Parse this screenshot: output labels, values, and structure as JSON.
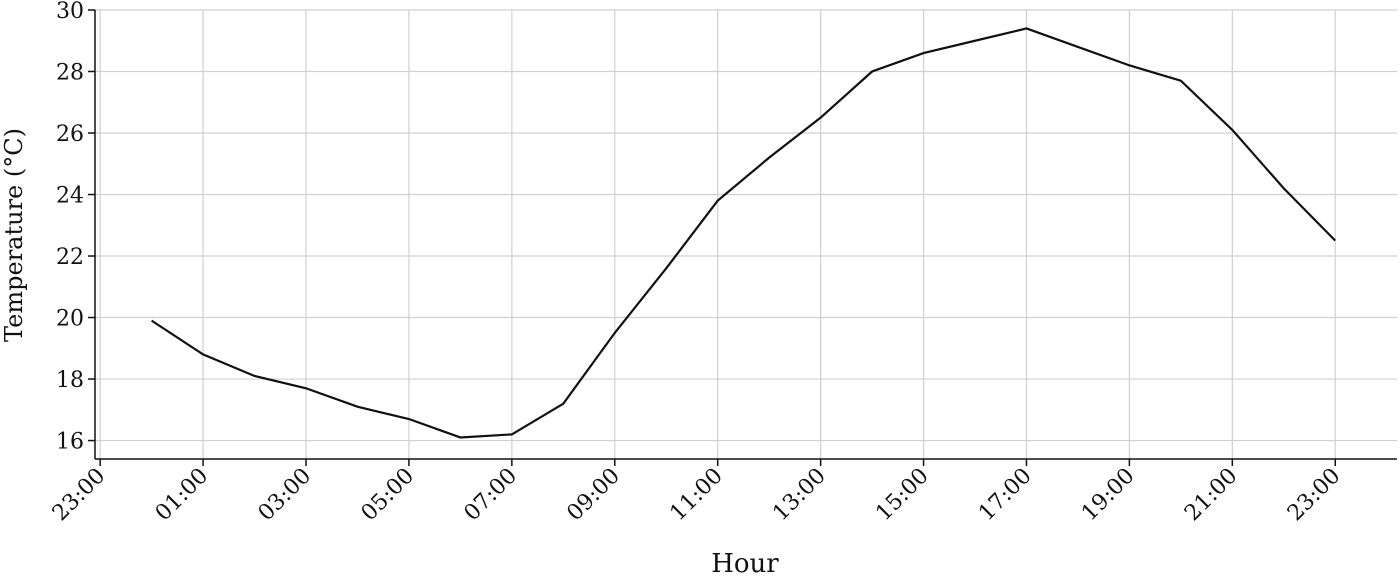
{
  "chart_data": {
    "type": "line",
    "xlabel": "Hour",
    "ylabel": "Temperature (°C)",
    "x": [
      0,
      1,
      2,
      3,
      4,
      5,
      6,
      7,
      8,
      9,
      10,
      11,
      12,
      13,
      14,
      15,
      16,
      17,
      18,
      19,
      20,
      21,
      22,
      23
    ],
    "values": [
      19.9,
      18.8,
      18.1,
      17.7,
      17.1,
      16.7,
      16.1,
      16.2,
      17.2,
      19.5,
      21.6,
      23.8,
      25.2,
      26.5,
      28.0,
      28.6,
      29.0,
      29.4,
      28.8,
      28.2,
      27.7,
      26.1,
      24.2,
      22.5
    ],
    "color": "#111111",
    "xlim": [
      -1.1,
      24.2
    ],
    "xticks": [
      {
        "value": -1,
        "label": "23:00"
      },
      {
        "value": 1,
        "label": "01:00"
      },
      {
        "value": 3,
        "label": "03:00"
      },
      {
        "value": 5,
        "label": "05:00"
      },
      {
        "value": 7,
        "label": "07:00"
      },
      {
        "value": 9,
        "label": "09:00"
      },
      {
        "value": 11,
        "label": "11:00"
      },
      {
        "value": 13,
        "label": "13:00"
      },
      {
        "value": 15,
        "label": "15:00"
      },
      {
        "value": 17,
        "label": "17:00"
      },
      {
        "value": 19,
        "label": "19:00"
      },
      {
        "value": 21,
        "label": "21:00"
      },
      {
        "value": 23,
        "label": "23:00"
      }
    ],
    "ylim": [
      15.4,
      30
    ],
    "yticks": [
      16,
      18,
      20,
      22,
      24,
      26,
      28,
      30
    ],
    "grid": true
  }
}
